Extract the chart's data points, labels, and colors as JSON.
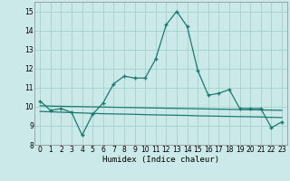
{
  "x": [
    0,
    1,
    2,
    3,
    4,
    5,
    6,
    7,
    8,
    9,
    10,
    11,
    12,
    13,
    14,
    15,
    16,
    17,
    18,
    19,
    20,
    21,
    22,
    23
  ],
  "y_main": [
    10.3,
    9.8,
    9.9,
    9.7,
    8.5,
    9.6,
    10.2,
    11.2,
    11.6,
    11.5,
    11.5,
    12.5,
    14.3,
    15.0,
    14.2,
    11.9,
    10.6,
    10.7,
    10.9,
    9.9,
    9.9,
    9.9,
    8.9,
    9.2
  ],
  "y_flat1": [
    10.05,
    10.03,
    10.02,
    10.01,
    10.0,
    9.99,
    9.98,
    9.97,
    9.96,
    9.95,
    9.94,
    9.93,
    9.92,
    9.91,
    9.9,
    9.89,
    9.88,
    9.87,
    9.86,
    9.85,
    9.84,
    9.83,
    9.82,
    9.81
  ],
  "y_flat2": [
    9.75,
    9.73,
    9.71,
    9.69,
    9.67,
    9.65,
    9.63,
    9.62,
    9.61,
    9.6,
    9.58,
    9.57,
    9.56,
    9.55,
    9.54,
    9.52,
    9.51,
    9.5,
    9.49,
    9.48,
    9.47,
    9.46,
    9.44,
    9.43
  ],
  "line_color": "#1a7a6e",
  "bg_color": "#cce9e9",
  "grid_color": "#a8d4d4",
  "xlabel": "Humidex (Indice chaleur)",
  "ylim": [
    8,
    15.5
  ],
  "xlim": [
    -0.5,
    23.5
  ],
  "yticks": [
    8,
    9,
    10,
    11,
    12,
    13,
    14,
    15
  ],
  "xticks": [
    0,
    1,
    2,
    3,
    4,
    5,
    6,
    7,
    8,
    9,
    10,
    11,
    12,
    13,
    14,
    15,
    16,
    17,
    18,
    19,
    20,
    21,
    22,
    23
  ]
}
